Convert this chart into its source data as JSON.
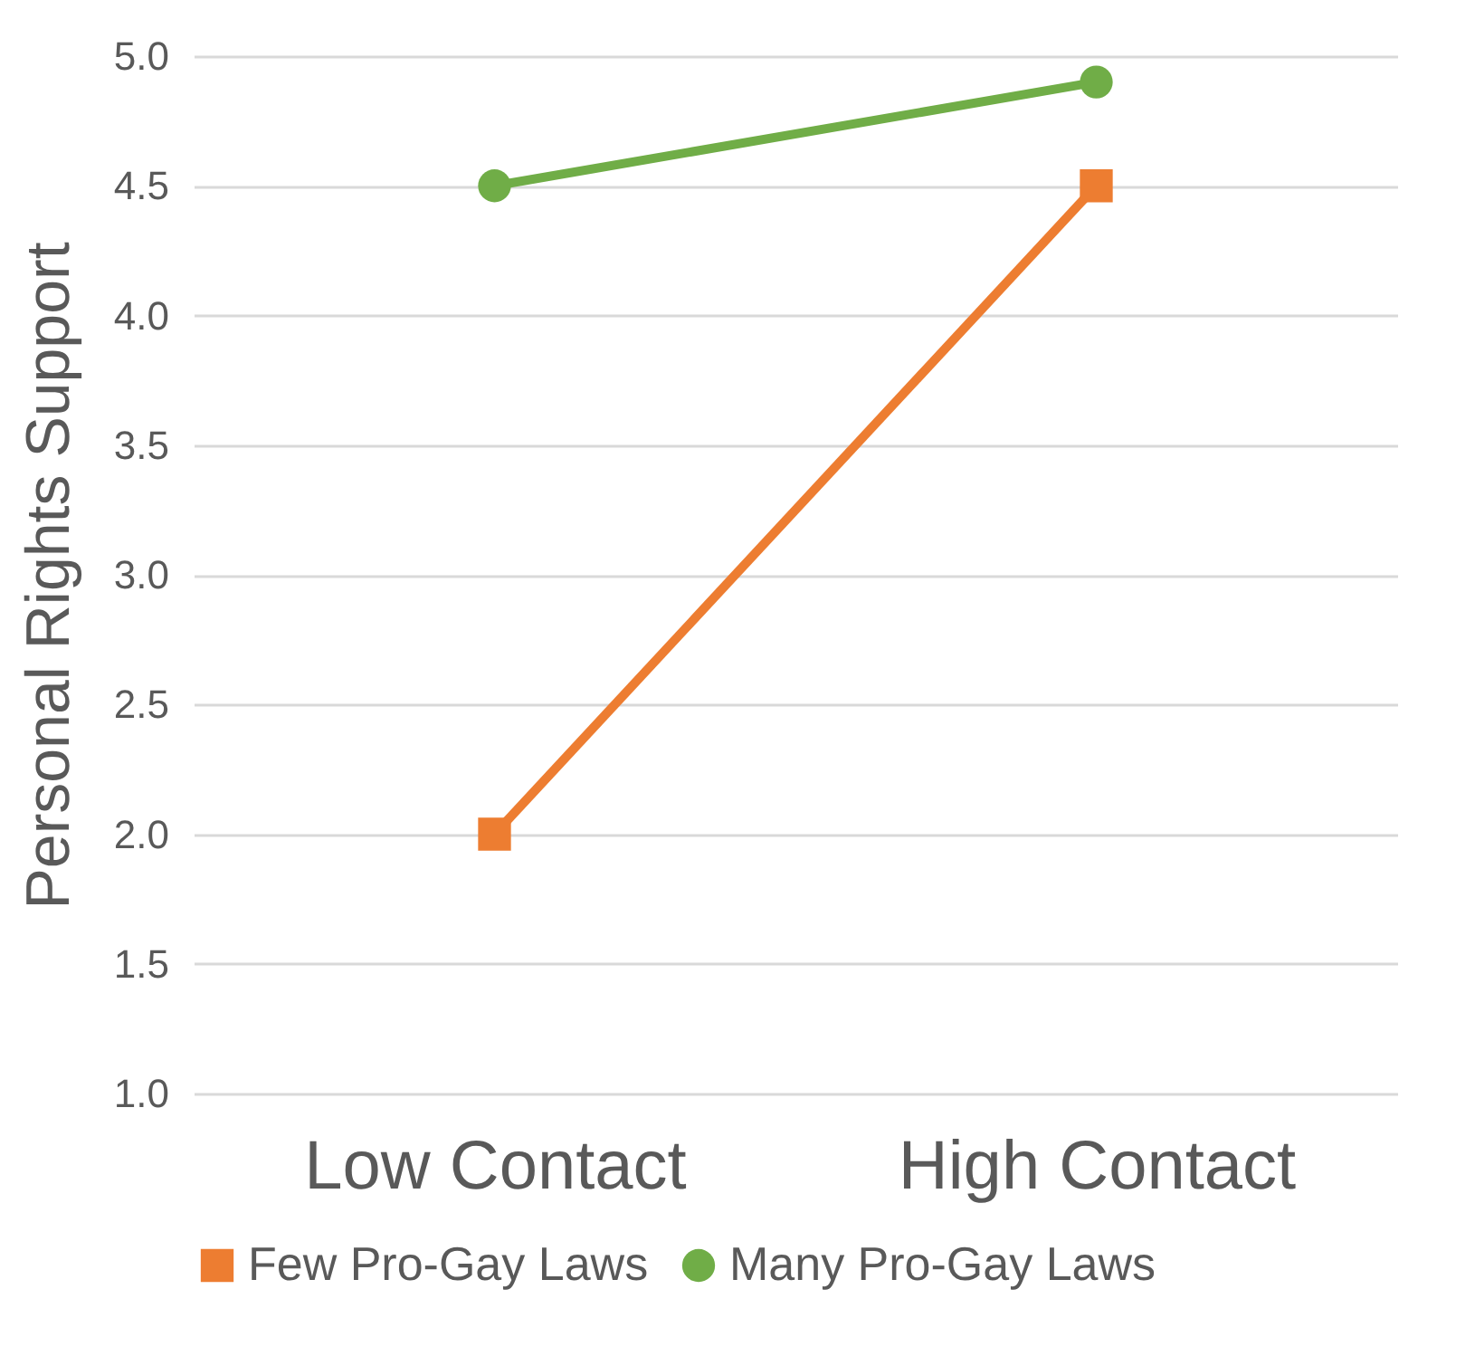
{
  "chart_data": {
    "type": "line",
    "ylabel": "Personal Rights Support",
    "categories": [
      "Low Contact",
      "High Contact"
    ],
    "series": [
      {
        "name": "Few Pro-Gay Laws",
        "color": "#ed7d31",
        "marker": "square",
        "values": [
          2.0,
          4.5
        ]
      },
      {
        "name": "Many Pro-Gay Laws",
        "color": "#70ad47",
        "marker": "circle",
        "values": [
          4.5,
          4.9
        ]
      }
    ],
    "ylim": [
      1,
      5
    ],
    "yticks": [
      {
        "value": 1,
        "label": "1.0"
      },
      {
        "value": 1.5,
        "label": "1.5"
      },
      {
        "value": 2,
        "label": "2.0"
      },
      {
        "value": 2.5,
        "label": "2.5"
      },
      {
        "value": 3,
        "label": "3.0"
      },
      {
        "value": 3.5,
        "label": "3.5"
      },
      {
        "value": 4,
        "label": "4.0"
      },
      {
        "value": 4.5,
        "label": "4.5"
      },
      {
        "value": 5,
        "label": "5.0"
      }
    ],
    "grid": "y",
    "legend": "bottom"
  }
}
